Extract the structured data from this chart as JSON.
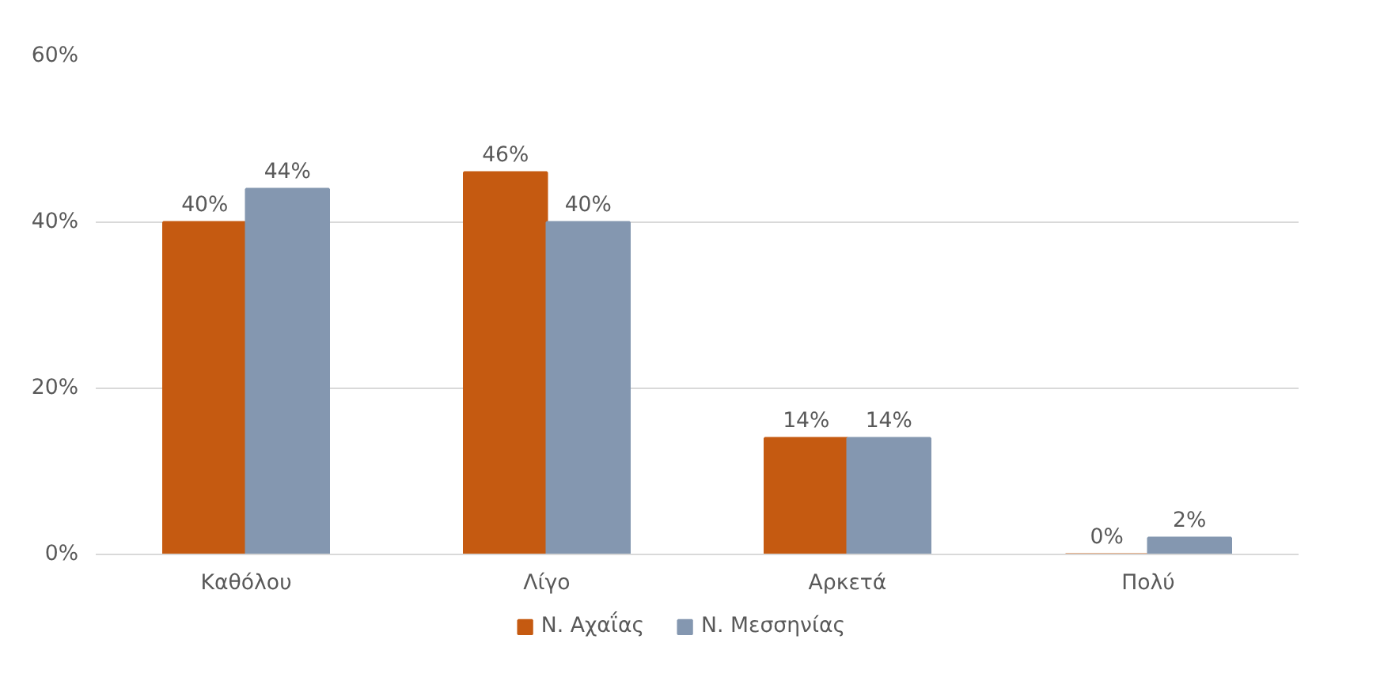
{
  "chart_data": {
    "type": "bar",
    "categories": [
      "Καθόλου",
      "Λίγο",
      "Αρκετά",
      "Πολύ"
    ],
    "series": [
      {
        "name": "Ν. Αχαΐας",
        "color": "#c55a11",
        "values": [
          40,
          46,
          14,
          0
        ],
        "value_labels": [
          "40%",
          "46%",
          "14%",
          "0%"
        ]
      },
      {
        "name": "Ν. Μεσσηνίας",
        "color": "#8497b0",
        "values": [
          44,
          40,
          14,
          2
        ],
        "value_labels": [
          "44%",
          "40%",
          "14%",
          "2%"
        ]
      }
    ],
    "ylim": [
      0,
      60
    ],
    "yticks": [
      {
        "value": 0,
        "label": "0%"
      },
      {
        "value": 20,
        "label": "20%"
      },
      {
        "value": 40,
        "label": "40%"
      },
      {
        "value": 60,
        "label": "60%"
      }
    ],
    "grid": "y",
    "legend": "bottom"
  }
}
